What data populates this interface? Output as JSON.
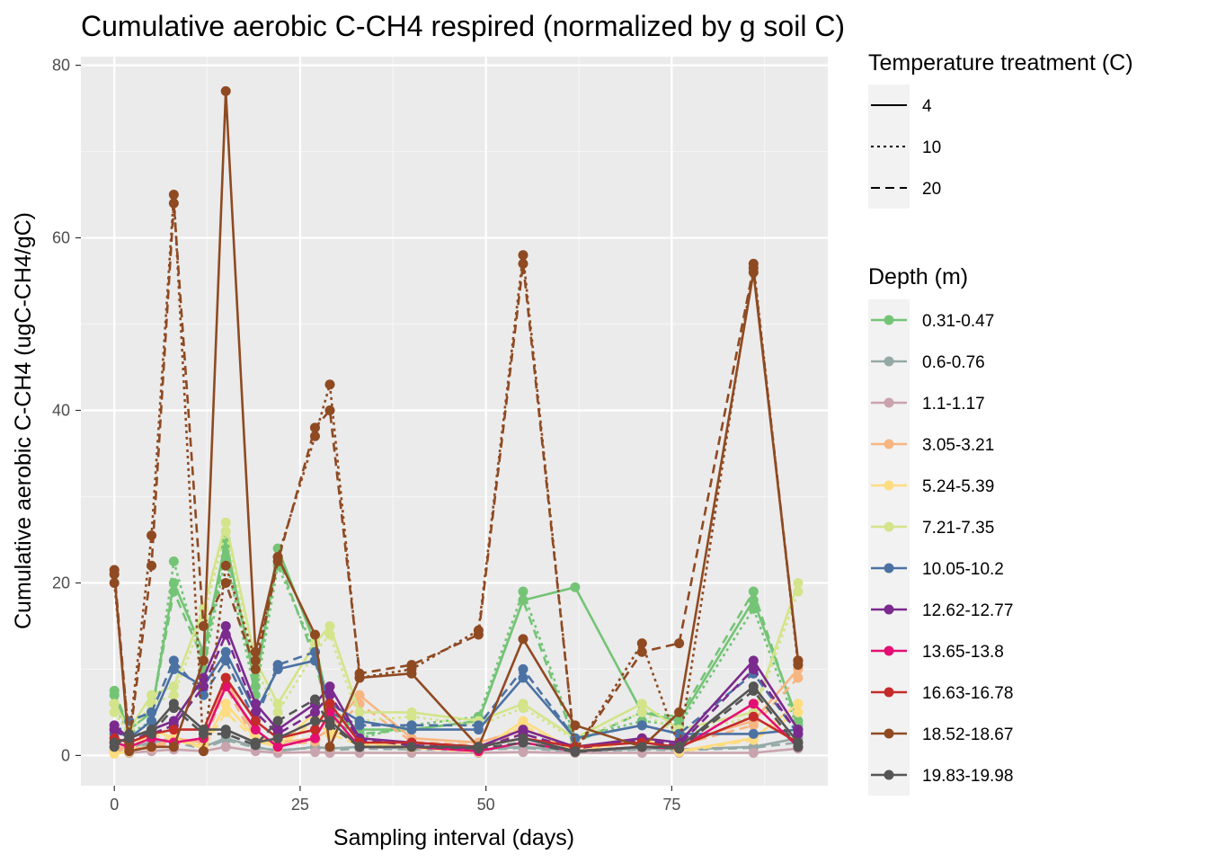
{
  "chart_data": {
    "type": "line",
    "title": "Cumulative aerobic C-CH4 respired (normalized by g soil C)",
    "xlabel": "Sampling interval (days)",
    "ylabel": "Cumulative aerobic C-CH4 (ugC-CH4/gC)",
    "xlim": [
      -4.5,
      96
    ],
    "ylim": [
      -3.5,
      81
    ],
    "x_ticks": [
      0,
      25,
      50,
      75
    ],
    "y_ticks": [
      0,
      20,
      40,
      60,
      80
    ],
    "x_tick_labels": [
      "0",
      "25",
      "50",
      "75"
    ],
    "y_tick_labels": [
      "0",
      "20",
      "40",
      "60",
      "80"
    ],
    "grid": true,
    "legend_position": "right",
    "x": [
      0,
      2,
      5,
      8,
      12,
      15,
      19,
      22,
      27,
      29,
      33,
      40,
      49,
      55,
      62,
      71,
      76,
      86,
      92
    ],
    "legend_linetype": {
      "title": "Temperature treatment (C)",
      "entries": [
        {
          "label": "4",
          "dash": "solid"
        },
        {
          "label": "10",
          "dash": "dotted"
        },
        {
          "label": "20",
          "dash": "dashed"
        }
      ]
    },
    "legend_color": {
      "title": "Depth (m)",
      "entries": [
        {
          "label": "0.31-0.47",
          "color": "#74c476"
        },
        {
          "label": "0.6-0.76",
          "color": "#95a9a6"
        },
        {
          "label": "1.1-1.17",
          "color": "#c9a3ad"
        },
        {
          "label": "3.05-3.21",
          "color": "#f7b581"
        },
        {
          "label": "5.24-5.39",
          "color": "#fedc80"
        },
        {
          "label": "7.21-7.35",
          "color": "#d3e48a"
        },
        {
          "label": "10.05-10.2",
          "color": "#4c72a3"
        },
        {
          "label": "12.62-12.77",
          "color": "#7b2a8e"
        },
        {
          "label": "13.65-13.8",
          "color": "#e30f74"
        },
        {
          "label": "16.63-16.78",
          "color": "#c42b29"
        },
        {
          "label": "18.52-18.67",
          "color": "#8f4a22"
        },
        {
          "label": "19.83-19.98",
          "color": "#555555"
        }
      ]
    },
    "series": [
      {
        "depth": "0.31-0.47",
        "temp": "4",
        "color": "#74c476",
        "dash": "solid",
        "values": [
          7,
          3,
          5,
          20,
          12,
          25,
          8,
          24,
          13,
          5,
          3,
          3,
          4,
          18,
          19.5,
          5,
          4,
          18,
          4
        ]
      },
      {
        "depth": "0.31-0.47",
        "temp": "10",
        "color": "#74c476",
        "dash": "dotted",
        "values": [
          6,
          2.5,
          4,
          22.5,
          10,
          23,
          7,
          22,
          12,
          6,
          2,
          3.5,
          4.5,
          19,
          2,
          4,
          3.5,
          17,
          3
        ]
      },
      {
        "depth": "0.31-0.47",
        "temp": "20",
        "color": "#74c476",
        "dash": "dashed",
        "values": [
          7.5,
          3,
          5,
          19,
          11,
          24,
          9,
          23,
          11,
          4,
          2.5,
          3,
          4,
          18,
          1.5,
          5,
          4.5,
          19,
          3.5
        ]
      },
      {
        "depth": "0.6-0.76",
        "temp": "4",
        "color": "#95a9a6",
        "dash": "solid",
        "values": [
          1.5,
          1,
          1.5,
          2,
          1,
          2,
          1,
          0.5,
          1,
          0.8,
          1,
          0.8,
          0.7,
          1,
          0.5,
          0.8,
          0.7,
          1,
          2
        ]
      },
      {
        "depth": "0.6-0.76",
        "temp": "20",
        "color": "#95a9a6",
        "dash": "dashed",
        "values": [
          1,
          0.8,
          1.2,
          1.5,
          0.8,
          1.8,
          0.9,
          0.6,
          0.9,
          0.6,
          0.8,
          0.7,
          0.6,
          0.9,
          0.4,
          0.7,
          0.6,
          0.9,
          1.5
        ]
      },
      {
        "depth": "1.1-1.17",
        "temp": "4",
        "color": "#c9a3ad",
        "dash": "solid",
        "values": [
          0.5,
          0.3,
          0.5,
          0.7,
          0.5,
          1,
          0.5,
          0.3,
          0.4,
          0.3,
          0.3,
          0.3,
          0.3,
          0.4,
          0.3,
          0.3,
          0.3,
          0.3,
          0.8
        ]
      },
      {
        "depth": "3.05-3.21",
        "temp": "4",
        "color": "#f7b581",
        "dash": "solid",
        "values": [
          1,
          0.8,
          1,
          2,
          1.5,
          9,
          2,
          1.5,
          2,
          3,
          7,
          2,
          1.5,
          3,
          1,
          2,
          1.5,
          4,
          10
        ]
      },
      {
        "depth": "3.05-3.21",
        "temp": "20",
        "color": "#f7b581",
        "dash": "dashed",
        "values": [
          0.8,
          0.6,
          0.9,
          1.6,
          1.2,
          8,
          1.6,
          1.2,
          1.6,
          2.5,
          6,
          1.6,
          1.2,
          2.5,
          0.8,
          1.6,
          1.2,
          3.5,
          9
        ]
      },
      {
        "depth": "5.24-5.39",
        "temp": "4",
        "color": "#fedc80",
        "dash": "solid",
        "values": [
          0.2,
          0.5,
          3,
          2,
          1,
          6,
          2,
          1,
          5,
          3,
          1.5,
          1,
          0.5,
          4,
          0.5,
          2,
          0.5,
          2,
          6
        ]
      },
      {
        "depth": "5.24-5.39",
        "temp": "20",
        "color": "#fedc80",
        "dash": "dashed",
        "values": [
          0.3,
          0.4,
          2.5,
          1.8,
          0.9,
          5,
          1.8,
          0.9,
          4,
          2.5,
          1.2,
          0.9,
          0.4,
          3.5,
          0.4,
          1.8,
          0.4,
          1.8,
          5
        ]
      },
      {
        "depth": "7.21-7.35",
        "temp": "4",
        "color": "#d3e48a",
        "dash": "solid",
        "values": [
          6,
          3,
          7,
          8,
          17,
          27,
          11,
          6,
          13,
          15,
          5,
          5,
          4,
          6,
          2,
          6,
          3,
          5,
          20
        ]
      },
      {
        "depth": "7.21-7.35",
        "temp": "10",
        "color": "#d3e48a",
        "dash": "dotted",
        "values": [
          5,
          2.5,
          6,
          7,
          16,
          26,
          10,
          5,
          12,
          14,
          4,
          4.5,
          3.5,
          5.5,
          1.8,
          5,
          2.5,
          4.5,
          19
        ]
      },
      {
        "depth": "10.05-10.2",
        "temp": "4",
        "color": "#4c72a3",
        "dash": "solid",
        "values": [
          3,
          2,
          4,
          10,
          8,
          12,
          5,
          10,
          11,
          6,
          4,
          3,
          3,
          9,
          2,
          3.5,
          2.5,
          2.5,
          3
        ]
      },
      {
        "depth": "10.05-10.2",
        "temp": "20",
        "color": "#4c72a3",
        "dash": "dashed",
        "values": [
          2.5,
          4,
          5,
          11,
          7,
          11,
          4,
          10.5,
          12,
          5,
          3.5,
          3.5,
          3.5,
          10,
          2,
          3.5,
          2.5,
          9.5,
          2.5
        ]
      },
      {
        "depth": "12.62-12.77",
        "temp": "4",
        "color": "#7b2a8e",
        "dash": "solid",
        "values": [
          3.5,
          2,
          3,
          4,
          9,
          15,
          6,
          3,
          6,
          8,
          2,
          1.5,
          1,
          3,
          1,
          2,
          1.5,
          11,
          3
        ]
      },
      {
        "depth": "12.62-12.77",
        "temp": "20",
        "color": "#7b2a8e",
        "dash": "dashed",
        "values": [
          3,
          1.8,
          2.5,
          3.5,
          8,
          14,
          5,
          2.5,
          5,
          7,
          1.8,
          1.2,
          0.8,
          2.5,
          0.8,
          1.8,
          1.2,
          10,
          2.5
        ]
      },
      {
        "depth": "13.65-13.8",
        "temp": "4",
        "color": "#e30f74",
        "dash": "solid",
        "values": [
          1.5,
          1,
          2,
          1.5,
          2,
          8,
          3,
          1,
          2,
          5,
          1,
          1,
          0.5,
          1.5,
          0.5,
          1,
          0.8,
          6,
          1
        ]
      },
      {
        "depth": "16.63-16.78",
        "temp": "4",
        "color": "#c42b29",
        "dash": "solid",
        "values": [
          2,
          1.5,
          2.5,
          3,
          3,
          9,
          4,
          2,
          3,
          6,
          1.5,
          1.5,
          1,
          2,
          1,
          1.5,
          1,
          4.5,
          1.5
        ]
      },
      {
        "depth": "18.52-18.67",
        "temp": "4",
        "color": "#8f4a22",
        "dash": "solid",
        "values": [
          21,
          0.5,
          1,
          1,
          11,
          77,
          12,
          23,
          14,
          1,
          9,
          9.5,
          1,
          13.5,
          3.5,
          1,
          5,
          56,
          11
        ]
      },
      {
        "depth": "18.52-18.67",
        "temp": "10",
        "color": "#8f4a22",
        "dash": "dotted",
        "values": [
          20,
          2,
          25.5,
          65,
          0.5,
          22,
          11,
          23,
          37,
          43,
          9,
          10,
          14.5,
          58,
          0.5,
          13,
          1,
          57,
          10.5
        ]
      },
      {
        "depth": "18.52-18.67",
        "temp": "20",
        "color": "#8f4a22",
        "dash": "dashed",
        "values": [
          21.5,
          1.5,
          22,
          64,
          15,
          20,
          10,
          22.5,
          38,
          40,
          9.5,
          10.5,
          14,
          57,
          0.5,
          12,
          13,
          56.5,
          11
        ]
      },
      {
        "depth": "19.83-19.98",
        "temp": "4",
        "color": "#555555",
        "dash": "solid",
        "values": [
          1.5,
          2,
          3,
          6,
          3,
          3,
          1.5,
          2,
          4,
          4,
          1,
          1,
          1,
          2,
          0.5,
          1,
          1,
          8,
          1.5
        ]
      },
      {
        "depth": "19.83-19.98",
        "temp": "20",
        "color": "#555555",
        "dash": "dashed",
        "values": [
          1,
          2.5,
          2.5,
          5.5,
          2.5,
          2.5,
          1.2,
          4,
          6.5,
          3.5,
          1,
          1,
          0.8,
          1.5,
          0.4,
          1,
          0.8,
          7.5,
          1
        ]
      }
    ]
  }
}
